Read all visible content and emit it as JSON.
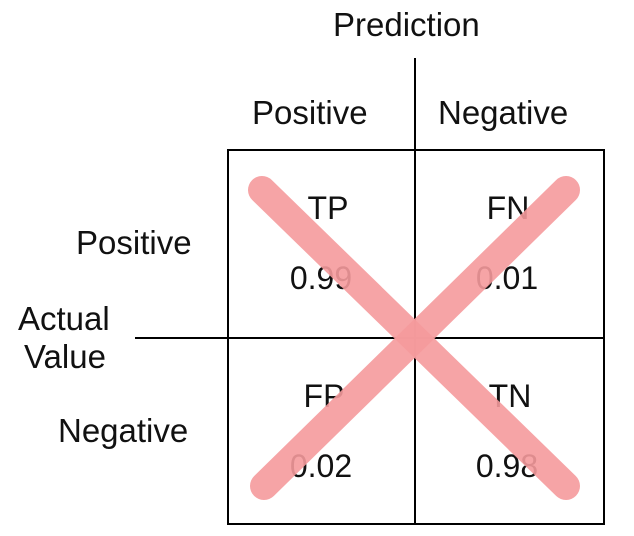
{
  "prediction_title": "Prediction",
  "actual_title": [
    "Actual",
    "Value"
  ],
  "columns": [
    "Positive",
    "Negative"
  ],
  "rows": [
    "Positive",
    "Negative"
  ],
  "cells": [
    {
      "abbr": "TP",
      "value": "0.99"
    },
    {
      "abbr": "FN",
      "value": "0.01"
    },
    {
      "abbr": "FP",
      "value": "0.02"
    },
    {
      "abbr": "TN",
      "value": "0.98"
    }
  ],
  "colors": {
    "line": "#000000",
    "cross": "#f59a9c",
    "text": "#111111"
  }
}
